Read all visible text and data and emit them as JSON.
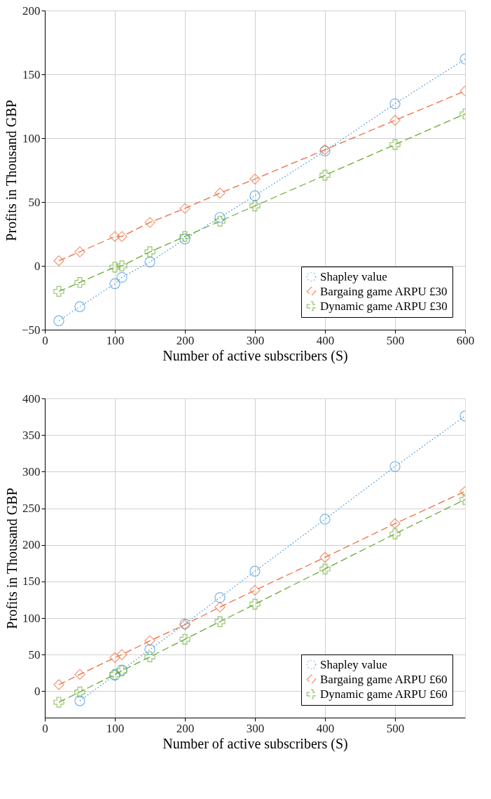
{
  "chart_data": [
    {
      "type": "line",
      "xlabel": "Number of active subscribers (S)",
      "ylabel": "Profits in Thousand GBP",
      "x": [
        20,
        50,
        100,
        110,
        150,
        200,
        250,
        300,
        400,
        500,
        600
      ],
      "xlim": [
        0,
        600
      ],
      "xticks": [
        0,
        100,
        200,
        300,
        400,
        500,
        600
      ],
      "ylim": [
        -50,
        200
      ],
      "yticks": [
        -50,
        0,
        50,
        100,
        150,
        200
      ],
      "grid": true,
      "legend": "bottom right",
      "series": [
        {
          "name": "Shapley value",
          "color": "#3f94d9",
          "marker": "circle",
          "line_style": "dotted",
          "values": [
            -43,
            -32,
            -14,
            -9,
            3,
            21,
            38,
            55,
            90,
            127,
            162
          ]
        },
        {
          "name": "Bargaing game ARPU £30",
          "color": "#f26b3a",
          "marker": "diamond",
          "line_style": "dashed",
          "values": [
            4,
            11,
            23,
            23,
            34,
            45,
            57,
            68,
            91,
            114,
            137
          ]
        },
        {
          "name": "Dynamic game ARPU £30",
          "color": "#6aac2e",
          "marker": "cross",
          "line_style": "dashed",
          "values": [
            -20,
            -13,
            -1,
            0,
            11,
            23,
            35,
            47,
            71,
            95,
            119
          ]
        }
      ]
    },
    {
      "type": "line",
      "xlabel": "Number of active subscribers (S)",
      "ylabel": "Profits in Thousand GBP",
      "x": [
        20,
        50,
        100,
        110,
        150,
        200,
        250,
        300,
        400,
        500,
        600
      ],
      "xlim": [
        0,
        600
      ],
      "xticks": [
        0,
        100,
        200,
        300,
        400,
        500
      ],
      "ylim": [
        -36,
        400
      ],
      "yticks": [
        0,
        50,
        100,
        150,
        200,
        250,
        300,
        350,
        400
      ],
      "grid": true,
      "legend": "bottom right",
      "series": [
        {
          "name": "Shapley value",
          "color": "#3f94d9",
          "marker": "circle",
          "line_style": "dotted",
          "values": [
            null,
            -13,
            22,
            29,
            57,
            92,
            128,
            164,
            235,
            307,
            376
          ]
        },
        {
          "name": "Bargaing game ARPU £60",
          "color": "#f26b3a",
          "marker": "diamond",
          "line_style": "dashed",
          "values": [
            9,
            23,
            46,
            50,
            69,
            91,
            115,
            138,
            183,
            229,
            273
          ]
        },
        {
          "name": "Dynamic game ARPU £60",
          "color": "#6aac2e",
          "marker": "cross",
          "line_style": "dashed",
          "values": [
            -15,
            -1,
            23,
            28,
            47,
            71,
            95,
            119,
            167,
            215,
            262
          ]
        }
      ]
    }
  ]
}
